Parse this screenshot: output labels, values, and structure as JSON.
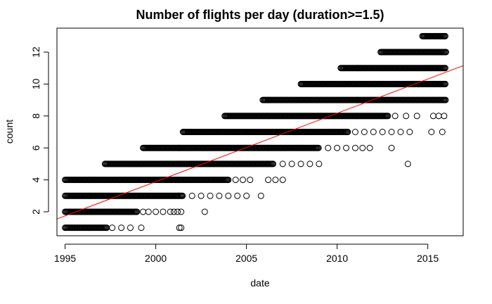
{
  "chart_data": {
    "type": "scatter",
    "title": "Number of flights per day (duration>=1.5)",
    "xlabel": "date",
    "ylabel": "count",
    "xlim": [
      1994.55,
      2016.95
    ],
    "ylim": [
      0.5,
      13.5
    ],
    "x_ticks": [
      1995,
      2000,
      2005,
      2010,
      2015
    ],
    "y_ticks": [
      2,
      4,
      6,
      8,
      10,
      12
    ],
    "grid": false,
    "point_color": "#000000",
    "trend_color": "#ff0000",
    "trend_line": {
      "x": [
        1994.55,
        2016.95
      ],
      "y": [
        1.55,
        11.15
      ]
    },
    "bands": [
      {
        "y": 1,
        "dense": [
          [
            1995.0,
            1997.3
          ]
        ],
        "sparse": [
          1997.6,
          1998.1,
          1998.6,
          1999.2,
          2001.3,
          2001.4
        ]
      },
      {
        "y": 2,
        "dense": [
          [
            1995.0,
            1999.0
          ]
        ],
        "sparse": [
          1999.3,
          1999.6,
          2000.0,
          2000.4,
          2000.8,
          2001.0,
          2001.2,
          2001.4,
          2002.7
        ]
      },
      {
        "y": 3,
        "dense": [
          [
            1995.0,
            2001.5
          ]
        ],
        "sparse": [
          2002.0,
          2002.5,
          2003.0,
          2003.5,
          2004.0,
          2004.5,
          2005.0,
          2005.8
        ]
      },
      {
        "y": 4,
        "dense": [
          [
            1995.0,
            2004.0
          ]
        ],
        "sparse": [
          2004.4,
          2004.8,
          2005.2,
          2006.2,
          2006.6,
          2007.0
        ]
      },
      {
        "y": 5,
        "dense": [
          [
            1997.2,
            2006.5
          ]
        ],
        "sparse": [
          2007.0,
          2007.5,
          2008.0,
          2008.5,
          2009.0,
          2013.9
        ]
      },
      {
        "y": 6,
        "dense": [
          [
            1999.3,
            2009.0
          ]
        ],
        "sparse": [
          2009.5,
          2010.0,
          2010.5,
          2011.0,
          2011.4,
          2011.8,
          2013.0
        ]
      },
      {
        "y": 7,
        "dense": [
          [
            2001.5,
            2010.6
          ]
        ],
        "sparse": [
          2011.0,
          2011.5,
          2012.0,
          2012.5,
          2013.0,
          2013.5,
          2014.0,
          2015.2,
          2015.8
        ]
      },
      {
        "y": 8,
        "dense": [
          [
            2003.8,
            2012.8
          ]
        ],
        "sparse": [
          2013.2,
          2013.8,
          2014.4,
          2015.3,
          2015.6,
          2015.9
        ]
      },
      {
        "y": 9,
        "dense": [
          [
            2005.9,
            2016.0
          ]
        ],
        "sparse": []
      },
      {
        "y": 10,
        "dense": [
          [
            2008.0,
            2016.0
          ]
        ],
        "sparse": []
      },
      {
        "y": 11,
        "dense": [
          [
            2010.2,
            2016.0
          ]
        ],
        "sparse": []
      },
      {
        "y": 12,
        "dense": [
          [
            2012.4,
            2016.0
          ]
        ],
        "sparse": []
      },
      {
        "y": 13,
        "dense": [
          [
            2014.7,
            2016.0
          ]
        ],
        "sparse": []
      }
    ]
  }
}
